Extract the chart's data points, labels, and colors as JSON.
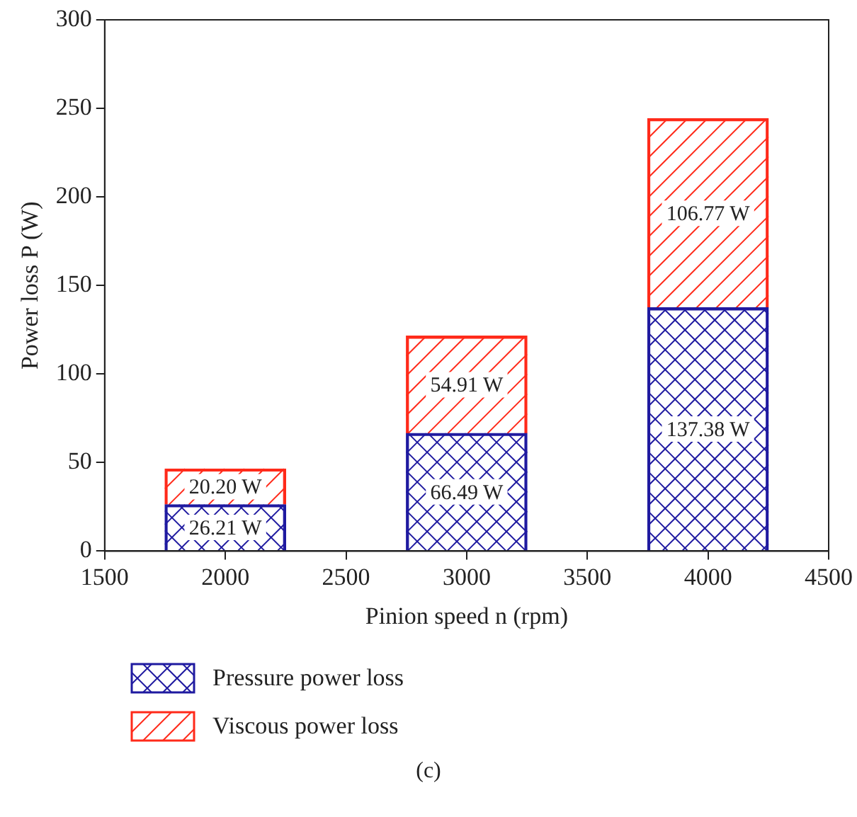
{
  "chart_data": {
    "type": "bar",
    "stacked": true,
    "xlabel": "Pinion speed n (rpm)",
    "ylabel": "Power loss P (W)",
    "x": [
      2000,
      3000,
      4000
    ],
    "series": [
      {
        "name": "Pressure power loss",
        "color": "#1f1aa0",
        "values": [
          26.21,
          66.49,
          137.38
        ],
        "value_labels": [
          "26.21 W",
          "66.49 W",
          "137.38 W"
        ]
      },
      {
        "name": "Viscous power loss",
        "color": "#ff2a1a",
        "values": [
          20.2,
          54.91,
          106.77
        ],
        "value_labels": [
          "20.20 W",
          "54.91 W",
          "106.77 W"
        ]
      }
    ],
    "xlim": [
      1500,
      4500
    ],
    "xticks": [
      1500,
      2000,
      2500,
      3000,
      3500,
      4000,
      4500
    ],
    "ylim": [
      0,
      300
    ],
    "yticks": [
      0,
      50,
      100,
      150,
      200,
      250,
      300
    ],
    "grid": false,
    "legend": "bottom",
    "annotations": [
      "(c)"
    ]
  }
}
